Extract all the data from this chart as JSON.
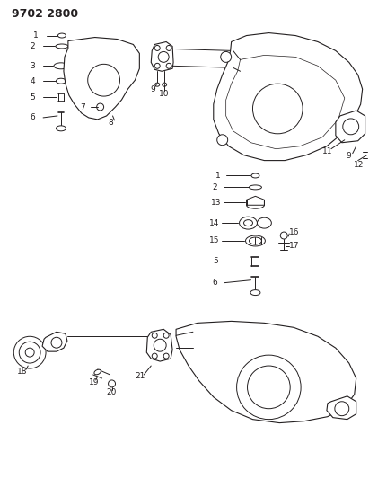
{
  "title": "9702 2800",
  "bg_color": "#ffffff",
  "line_color": "#231f20",
  "title_fontsize": 9,
  "label_fontsize": 6.5,
  "fig_width": 4.11,
  "fig_height": 5.33,
  "dpi": 100
}
